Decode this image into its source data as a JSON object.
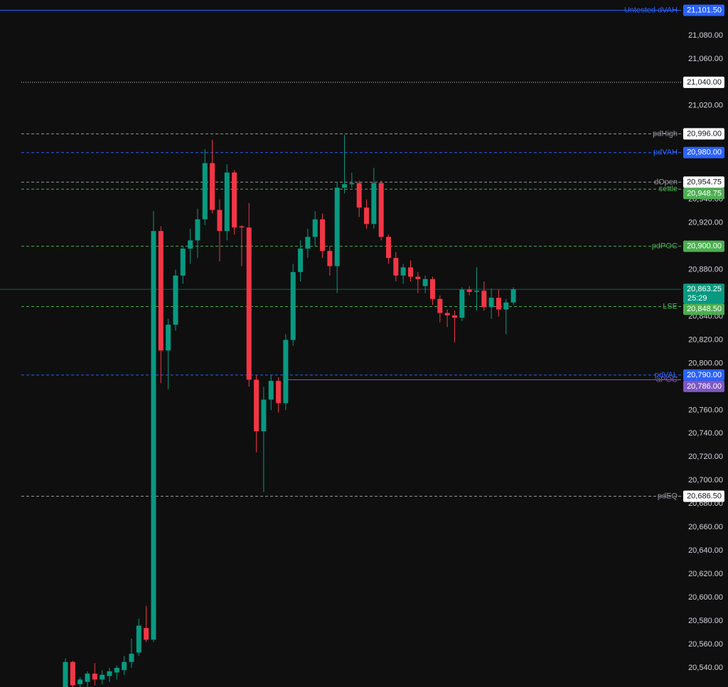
{
  "chart_data": {
    "type": "candlestick",
    "up_color": "#089981",
    "down_color": "#f23645",
    "open": [
      20520,
      20545,
      20526,
      20528,
      20535,
      20530,
      20533,
      20536,
      20538,
      20545,
      20553,
      20574,
      20564,
      20913,
      20811,
      20833,
      20875,
      20898,
      20905,
      20923,
      20971,
      20931,
      20913,
      20963,
      20917,
      20916,
      20786,
      20742,
      20769,
      20785,
      20766,
      20820,
      20878,
      20898,
      20908,
      20923,
      20896,
      20883,
      20950,
      20953,
      20954,
      20933,
      20919,
      20954,
      20908,
      20890,
      20875,
      20882,
      20874,
      20866,
      20872,
      20855,
      20843,
      20841,
      20839,
      20863,
      20861,
      20862,
      20848,
      20856,
      20846,
      20852
    ],
    "high": [
      20548,
      20546,
      20532,
      20537,
      20544,
      20538,
      20540,
      20542,
      20550,
      20565,
      20582,
      20593,
      20930,
      20917,
      20838,
      20880,
      20900,
      20915,
      20932,
      20983,
      20991,
      20940,
      20970,
      20965,
      20918,
      20937,
      20790,
      20780,
      20790,
      20788,
      20825,
      20885,
      20905,
      20915,
      20930,
      20928,
      20900,
      20955,
      20995,
      20963,
      20956,
      20940,
      20967,
      20956,
      20910,
      20895,
      20885,
      20888,
      20878,
      20875,
      20874,
      20858,
      20846,
      20845,
      20865,
      20866,
      20882,
      20870,
      20864,
      20863,
      20855,
      20865
    ],
    "low": [
      20515,
      20518,
      20522,
      20522,
      20525,
      20526,
      20528,
      20530,
      20534,
      20540,
      20550,
      20562,
      20562,
      20783,
      20778,
      20828,
      20868,
      20885,
      20890,
      20918,
      20928,
      20887,
      20905,
      20910,
      20883,
      20780,
      20724,
      20690,
      20760,
      20758,
      20760,
      20815,
      20870,
      20890,
      20900,
      20890,
      20875,
      20860,
      20945,
      20950,
      20925,
      20915,
      20915,
      20905,
      20885,
      20870,
      20868,
      20870,
      20860,
      20860,
      20850,
      20835,
      20831,
      20818,
      20836,
      20858,
      20845,
      20845,
      20838,
      20840,
      20825,
      20850
    ],
    "close": [
      20545,
      20525,
      20530,
      20535,
      20530,
      20534,
      20537,
      20540,
      20545,
      20552,
      20576,
      20564,
      20913,
      20811,
      20833,
      20875,
      20898,
      20905,
      20923,
      20971,
      20931,
      20913,
      20963,
      20916,
      20916,
      20786,
      20742,
      20769,
      20785,
      20766,
      20820,
      20878,
      20898,
      20908,
      20923,
      20896,
      20883,
      20950,
      20953,
      20954,
      20933,
      20919,
      20954,
      20908,
      20890,
      20875,
      20882,
      20874,
      20872,
      20872,
      20855,
      20843,
      20841,
      20839,
      20863,
      20861,
      20862,
      20848,
      20856,
      20846,
      20852,
      20863.25
    ],
    "ylim": [
      20523.6,
      21110.3
    ],
    "yticks": [
      {
        "value": 21080,
        "label": "21,080.00"
      },
      {
        "value": 21060,
        "label": "21,060.00"
      },
      {
        "value": 21020,
        "label": "21,020.00"
      },
      {
        "value": 20940,
        "label": "20,940.00"
      },
      {
        "value": 20920,
        "label": "20,920.00"
      },
      {
        "value": 20880,
        "label": "20,880.00"
      },
      {
        "value": 20840,
        "label": "20,840.00"
      },
      {
        "value": 20820,
        "label": "20,820.00"
      },
      {
        "value": 20800,
        "label": "20,800.00"
      },
      {
        "value": 20760,
        "label": "20,760.00"
      },
      {
        "value": 20740,
        "label": "20,740.00"
      },
      {
        "value": 20720,
        "label": "20,720.00"
      },
      {
        "value": 20700,
        "label": "20,700.00"
      },
      {
        "value": 20680,
        "label": "20,680.00"
      },
      {
        "value": 20660,
        "label": "20,660.00"
      },
      {
        "value": 20640,
        "label": "20,640.00"
      },
      {
        "value": 20620,
        "label": "20,620.00"
      },
      {
        "value": 20600,
        "label": "20,600.00"
      },
      {
        "value": 20580,
        "label": "20,580.00"
      },
      {
        "value": 20560,
        "label": "20,560.00"
      },
      {
        "value": 20540,
        "label": "20,540.00"
      }
    ],
    "levels": [
      {
        "label": "Untested dVAH",
        "value": 21101.5,
        "value_label": "21,101.50",
        "color": "#2962ff",
        "style": "solid"
      },
      {
        "value": 21040,
        "value_label": "21,040.00",
        "color": "#d1d4dc",
        "style": "dotted"
      },
      {
        "label": "pdHigh",
        "value": 20996,
        "value_label": "20,996.00",
        "color": "#9598a1",
        "style": "dashed"
      },
      {
        "label": "pdVAH",
        "value": 20980,
        "value_label": "20,980.00",
        "color": "#2962ff",
        "style": "dashed"
      },
      {
        "label": "dOpen",
        "value": 20954.75,
        "value_label": "20,954.75",
        "color": "#9598a1",
        "style": "dashed"
      },
      {
        "label": "settle",
        "value": 20948.75,
        "value_label": "20,948.75",
        "color": "#4caf50",
        "style": "dashed"
      },
      {
        "label": "pdPOC",
        "value": 20900,
        "value_label": "20,900.00",
        "color": "#4caf50",
        "style": "dashed"
      },
      {
        "label": "LSE",
        "value": 20848.5,
        "value_label": "20,848.50",
        "color": "#4caf50",
        "style": "dashed"
      },
      {
        "label": "pdVAL",
        "value": 20790,
        "value_label": "20,790.00",
        "color": "#2962ff",
        "style": "dashed"
      },
      {
        "label": "aPOC",
        "value": 20786,
        "value_label": "20,786.00",
        "color": "#7e57c2",
        "style": "solid"
      },
      {
        "label": "pdEQ",
        "value": 20686.5,
        "value_label": "20,686.50",
        "color": "#9598a1",
        "style": "dashed"
      }
    ],
    "last_price": {
      "value": 20863.25,
      "value_label": "20,863.25",
      "countdown": "25:29",
      "color": "#089981"
    }
  }
}
